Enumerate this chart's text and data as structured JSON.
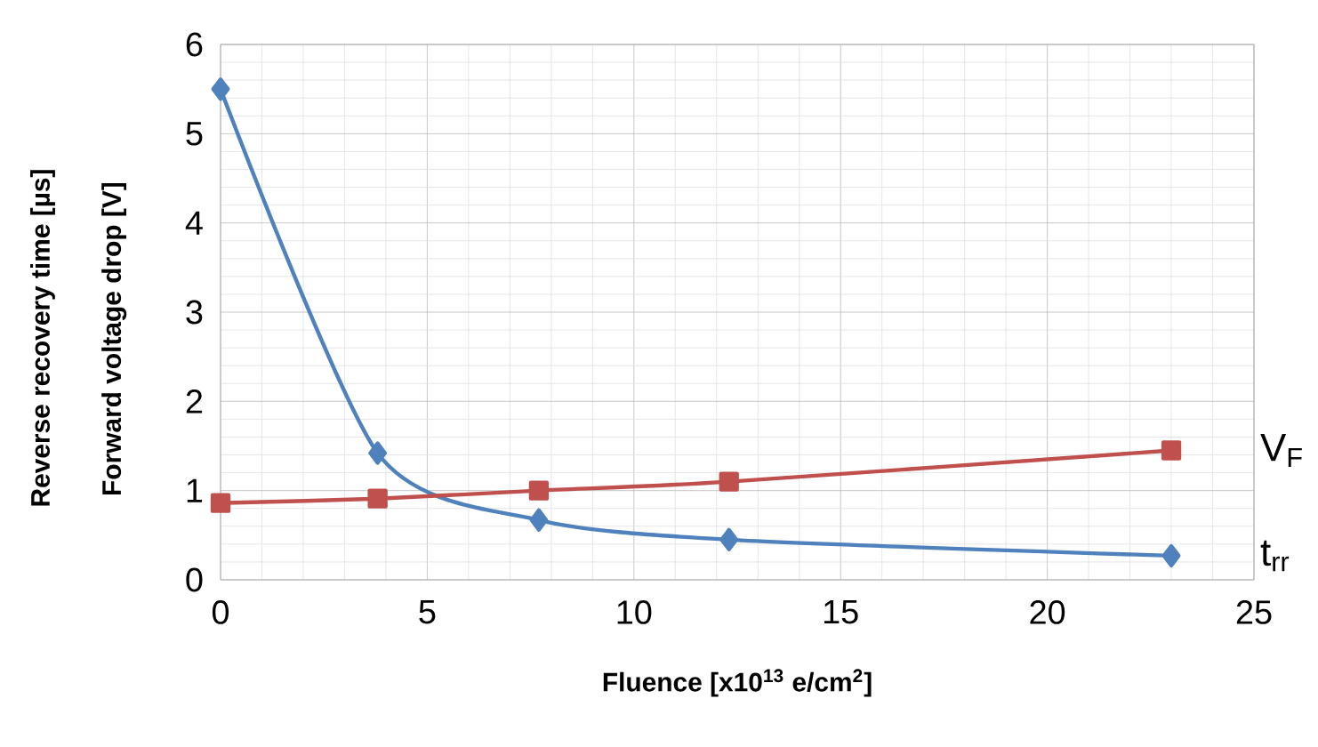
{
  "chart_data": {
    "type": "line",
    "xlabel": "Fluence [x10$^{13}$ e/cm$^{2}$]",
    "ylabel": "Forward voltage drop [V]",
    "annotations": [
      "Reverse recovery time [µs]"
    ],
    "xlim": [
      0,
      25
    ],
    "xticks": [
      0,
      5,
      10,
      15,
      20,
      25
    ],
    "ylim": [
      0,
      6
    ],
    "yticks": [
      0,
      1,
      2,
      3,
      4,
      5,
      6
    ],
    "grid": true,
    "legend": false,
    "line_style": "solid",
    "series": [
      {
        "name": "t$_{rr}$",
        "color": "#4f81bd",
        "marker": "diamond",
        "x": [
          0,
          3.8,
          7.7,
          12.3,
          23
        ],
        "values": [
          5.5,
          1.42,
          0.67,
          0.45,
          0.27
        ]
      },
      {
        "name": "V$_{F}$",
        "color": "#c0504d",
        "marker": "square",
        "x": [
          0,
          3.8,
          7.7,
          12.3,
          23
        ],
        "values": [
          0.86,
          0.91,
          1.0,
          1.1,
          1.45
        ]
      }
    ]
  }
}
